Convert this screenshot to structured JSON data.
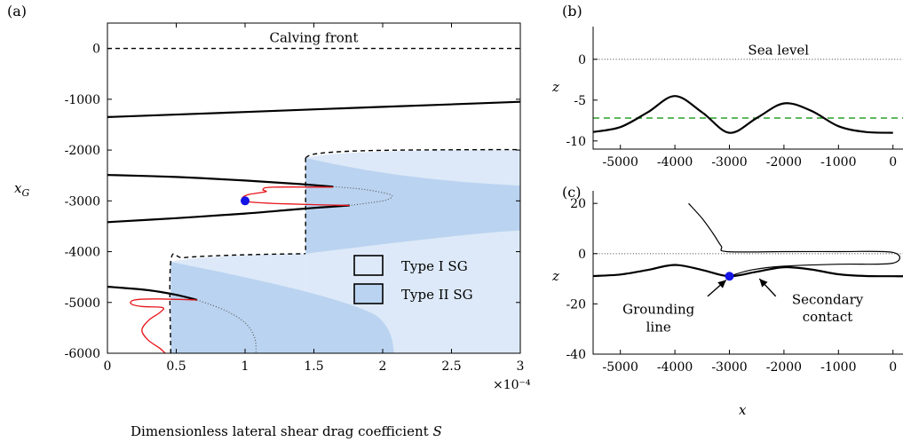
{
  "colors": {
    "type1": "#dde9f8",
    "type2": "#bad3f0",
    "branch": "#000000",
    "red": "#e8141a",
    "dot": "#1414e6",
    "green": "#2aa02a",
    "dotted": "#555555"
  },
  "chart_data": [
    {
      "panel_label": "(a)",
      "type": "line",
      "xlabel": "Dimensionless lateral shear drag coefficient S",
      "ylabel": "x_G",
      "x_multiplier": "×10⁻⁴",
      "xlim": [
        0,
        3
      ],
      "ylim": [
        -6000,
        500
      ],
      "xticks": [
        0,
        0.5,
        1,
        1.5,
        2,
        2.5,
        3
      ],
      "xtick_labels": [
        "0",
        "0.5",
        "1",
        "1.5",
        "2",
        "2.5",
        "3"
      ],
      "yticks": [
        0,
        -1000,
        -2000,
        -3000,
        -4000,
        -5000,
        -6000
      ],
      "ytick_labels": [
        "0",
        "-1000",
        "-2000",
        "-3000",
        "-4000",
        "-5000",
        "-6000"
      ],
      "annotations": [
        {
          "text": "Calving front",
          "x": 1.5,
          "y": 120
        }
      ],
      "legend": {
        "placement": "center-right",
        "entries": [
          "Type I SG",
          "Type II SG"
        ]
      },
      "series": [
        {
          "style": "dashed",
          "points": [
            [
              0,
              0
            ],
            [
              3,
              0
            ]
          ]
        },
        {
          "style": "solid",
          "points": [
            [
              0,
              -1350
            ],
            [
              1,
              -1250
            ],
            [
              2,
              -1150
            ],
            [
              3,
              -1050
            ]
          ]
        },
        {
          "style": "dashed",
          "points": [
            [
              1.44,
              -2150
            ],
            [
              1.5,
              -2080
            ],
            [
              1.7,
              -2030
            ],
            [
              2,
              -2005
            ],
            [
              2.5,
              -1995
            ],
            [
              3,
              -1990
            ]
          ]
        },
        {
          "style": "dashed",
          "points": [
            [
              1.44,
              -2150
            ],
            [
              1.44,
              -4040
            ]
          ]
        },
        {
          "style": "dashed",
          "points": [
            [
              0.46,
              -6000
            ],
            [
              0.46,
              -4200
            ],
            [
              0.55,
              -4120
            ],
            [
              0.8,
              -4080
            ],
            [
              1.1,
              -4055
            ],
            [
              1.44,
              -4040
            ]
          ]
        },
        {
          "style": "solid",
          "points": [
            [
              0,
              -2490
            ],
            [
              0.5,
              -2530
            ],
            [
              1,
              -2600
            ],
            [
              1.4,
              -2670
            ],
            [
              1.64,
              -2720
            ]
          ]
        },
        {
          "style": "solid",
          "points": [
            [
              0,
              -3420
            ],
            [
              0.5,
              -3340
            ],
            [
              1,
              -3250
            ],
            [
              1.4,
              -3160
            ],
            [
              1.76,
              -3090
            ]
          ]
        },
        {
          "style": "dotted",
          "points": [
            [
              1.64,
              -2720
            ],
            [
              1.85,
              -2770
            ],
            [
              2.02,
              -2850
            ],
            [
              2.07,
              -2910
            ],
            [
              2.02,
              -2990
            ],
            [
              1.9,
              -3040
            ],
            [
              1.76,
              -3090
            ]
          ]
        },
        {
          "style": "solid",
          "points": [
            [
              0,
              -4690
            ],
            [
              0.3,
              -4760
            ],
            [
              0.5,
              -4850
            ],
            [
              0.65,
              -4950
            ]
          ]
        },
        {
          "style": "dotted",
          "points": [
            [
              0.65,
              -4950
            ],
            [
              0.85,
              -5150
            ],
            [
              1,
              -5400
            ],
            [
              1.07,
              -5700
            ],
            [
              1.08,
              -6000
            ]
          ]
        },
        {
          "style": "red",
          "points": [
            [
              1.64,
              -2730
            ],
            [
              1.2,
              -2730
            ],
            [
              1.13,
              -2780
            ],
            [
              1.15,
              -2820
            ],
            [
              1.02,
              -2880
            ],
            [
              0.98,
              -2960
            ],
            [
              1.03,
              -3020
            ],
            [
              1.3,
              -3060
            ],
            [
              1.76,
              -3090
            ]
          ]
        },
        {
          "style": "red",
          "points": [
            [
              0.65,
              -4950
            ],
            [
              0.35,
              -4930
            ],
            [
              0.2,
              -4950
            ],
            [
              0.17,
              -5020
            ],
            [
              0.25,
              -5080
            ],
            [
              0.4,
              -5100
            ],
            [
              0.38,
              -5200
            ],
            [
              0.3,
              -5350
            ],
            [
              0.25,
              -5550
            ],
            [
              0.3,
              -5750
            ],
            [
              0.38,
              -5900
            ],
            [
              0.42,
              -6000
            ]
          ]
        }
      ],
      "marker": {
        "x": 1,
        "y": -3000,
        "color": "#1414e6"
      }
    },
    {
      "panel_label": "(b)",
      "type": "line",
      "xlabel": "",
      "ylabel": "z",
      "xlim": [
        -5500,
        200
      ],
      "ylim": [
        -11,
        4
      ],
      "xticks": [
        -5000,
        -4000,
        -3000,
        -2000,
        -1000,
        0
      ],
      "xtick_labels": [
        "-5000",
        "-4000",
        "-3000",
        "-2000",
        "-1000",
        "0"
      ],
      "yticks": [
        0,
        -5,
        -10
      ],
      "ytick_labels": [
        "0",
        "-5",
        "-10"
      ],
      "annotations": [
        {
          "text": "Sea level",
          "x": -2100,
          "y": 0.6
        }
      ],
      "series": [
        {
          "style": "dotted",
          "points": [
            [
              -5500,
              0
            ],
            [
              200,
              0
            ]
          ]
        },
        {
          "style": "green-dashed",
          "points": [
            [
              -5500,
              -7.2
            ],
            [
              200,
              -7.2
            ]
          ]
        },
        {
          "style": "solid",
          "points": [
            [
              -5500,
              -8.9
            ],
            [
              -5000,
              -8.3
            ],
            [
              -4500,
              -6.5
            ],
            [
              -4000,
              -4.5
            ],
            [
              -3500,
              -6.5
            ],
            [
              -3000,
              -9.0
            ],
            [
              -2500,
              -7.2
            ],
            [
              -2000,
              -5.4
            ],
            [
              -1500,
              -6.3
            ],
            [
              -1000,
              -8.2
            ],
            [
              -500,
              -8.9
            ],
            [
              0,
              -9.0
            ]
          ]
        }
      ]
    },
    {
      "panel_label": "(c)",
      "type": "line",
      "xlabel": "x",
      "ylabel": "z",
      "xlim": [
        -5500,
        200
      ],
      "ylim": [
        -40,
        25
      ],
      "xticks": [
        -5000,
        -4000,
        -3000,
        -2000,
        -1000,
        0
      ],
      "xtick_labels": [
        "-5000",
        "-4000",
        "-3000",
        "-2000",
        "-1000",
        "0"
      ],
      "yticks": [
        20,
        0,
        -20,
        -40
      ],
      "ytick_labels": [
        "20",
        "0",
        "-20",
        "-40"
      ],
      "annotations": [
        {
          "text": "Grounding",
          "x": -4300,
          "y": -24
        },
        {
          "text": "line",
          "x": -4300,
          "y": -31
        },
        {
          "text": "Secondary",
          "x": -1200,
          "y": -20
        },
        {
          "text": "contact",
          "x": -1200,
          "y": -27
        }
      ],
      "series": [
        {
          "style": "dotted",
          "points": [
            [
              -5500,
              0
            ],
            [
              200,
              0
            ]
          ]
        },
        {
          "style": "solid",
          "points": [
            [
              -5500,
              -8.9
            ],
            [
              -5000,
              -8.3
            ],
            [
              -4500,
              -6.5
            ],
            [
              -4000,
              -4.5
            ],
            [
              -3500,
              -6.5
            ],
            [
              -3000,
              -9.0
            ],
            [
              -2500,
              -7.2
            ],
            [
              -2000,
              -5.4
            ],
            [
              -1500,
              -6.3
            ],
            [
              -1000,
              -8.2
            ],
            [
              -500,
              -8.9
            ],
            [
              0,
              -9.0
            ],
            [
              200,
              -9.0
            ]
          ]
        },
        {
          "style": "thin",
          "points": [
            [
              -3750,
              20
            ],
            [
              -3500,
              14
            ],
            [
              -3300,
              8
            ],
            [
              -3150,
              3
            ],
            [
              -3050,
              0.8
            ],
            [
              -2000,
              0.8
            ],
            [
              -1000,
              0.8
            ],
            [
              0,
              0.5
            ],
            [
              0,
              -3.8
            ],
            [
              -1000,
              -4.2
            ],
            [
              -2000,
              -5.0
            ],
            [
              -2600,
              -6.5
            ],
            [
              -3000,
              -9.0
            ]
          ]
        }
      ],
      "marker": {
        "x": -3000,
        "y": -9.0,
        "color": "#1414e6"
      },
      "arrows": [
        {
          "from": [
            -3400,
            -17
          ],
          "to": [
            -3060,
            -10.5
          ]
        },
        {
          "from": [
            -2150,
            -17
          ],
          "to": [
            -2450,
            -10
          ]
        }
      ]
    }
  ]
}
